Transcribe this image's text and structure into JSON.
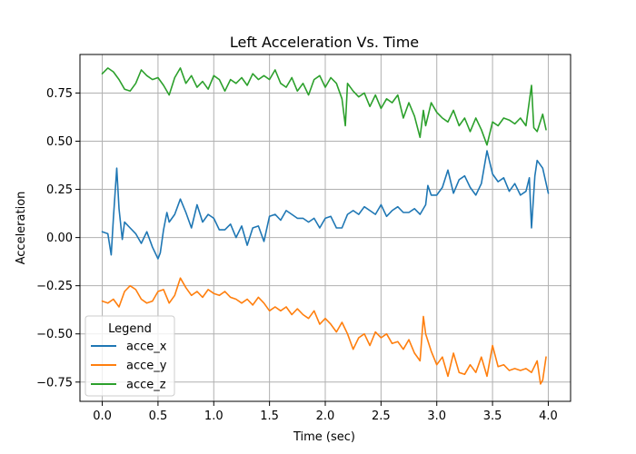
{
  "chart_data": {
    "type": "line",
    "title": "Left Acceleration Vs. Time",
    "xlabel": "Time (sec)",
    "ylabel": "Acceleration",
    "xlim": [
      -0.2,
      4.2
    ],
    "ylim": [
      -0.85,
      0.95
    ],
    "grid": true,
    "legend": {
      "title": "Legend",
      "placement": "lower-left"
    },
    "x_ticks": [
      {
        "value": 0.0,
        "label": "0.0"
      },
      {
        "value": 0.5,
        "label": "0.5"
      },
      {
        "value": 1.0,
        "label": "1.0"
      },
      {
        "value": 1.5,
        "label": "1.5"
      },
      {
        "value": 2.0,
        "label": "2.0"
      },
      {
        "value": 2.5,
        "label": "2.5"
      },
      {
        "value": 3.0,
        "label": "3.0"
      },
      {
        "value": 3.5,
        "label": "3.5"
      },
      {
        "value": 4.0,
        "label": "4.0"
      }
    ],
    "y_ticks": [
      {
        "value": 0.75,
        "label": "0.75"
      },
      {
        "value": 0.5,
        "label": "0.50"
      },
      {
        "value": 0.25,
        "label": "0.25"
      },
      {
        "value": 0.0,
        "label": "0.00"
      },
      {
        "value": -0.25,
        "label": "−0.25"
      },
      {
        "value": -0.5,
        "label": "−0.50"
      },
      {
        "value": -0.75,
        "label": "−0.75"
      }
    ],
    "series": [
      {
        "name": "acce_x",
        "color": "#1f77b4",
        "x": [
          0.0,
          0.05,
          0.08,
          0.1,
          0.13,
          0.15,
          0.18,
          0.2,
          0.25,
          0.3,
          0.35,
          0.4,
          0.45,
          0.5,
          0.52,
          0.55,
          0.58,
          0.6,
          0.65,
          0.7,
          0.75,
          0.8,
          0.85,
          0.9,
          0.95,
          1.0,
          1.05,
          1.1,
          1.15,
          1.2,
          1.25,
          1.3,
          1.35,
          1.4,
          1.45,
          1.5,
          1.55,
          1.6,
          1.65,
          1.7,
          1.75,
          1.8,
          1.85,
          1.9,
          1.95,
          2.0,
          2.05,
          2.1,
          2.15,
          2.2,
          2.25,
          2.3,
          2.35,
          2.4,
          2.45,
          2.5,
          2.55,
          2.6,
          2.65,
          2.7,
          2.75,
          2.8,
          2.85,
          2.9,
          2.92,
          2.95,
          3.0,
          3.05,
          3.1,
          3.15,
          3.2,
          3.25,
          3.3,
          3.35,
          3.4,
          3.45,
          3.5,
          3.55,
          3.6,
          3.65,
          3.7,
          3.75,
          3.8,
          3.83,
          3.85,
          3.88,
          3.9,
          3.95,
          4.0
        ],
        "y": [
          0.03,
          0.02,
          -0.09,
          0.1,
          0.36,
          0.15,
          -0.01,
          0.08,
          0.05,
          0.02,
          -0.03,
          0.03,
          -0.05,
          -0.11,
          -0.08,
          0.04,
          0.13,
          0.08,
          0.12,
          0.2,
          0.13,
          0.05,
          0.17,
          0.08,
          0.12,
          0.1,
          0.04,
          0.04,
          0.07,
          0.0,
          0.06,
          -0.04,
          0.05,
          0.06,
          -0.02,
          0.11,
          0.12,
          0.09,
          0.14,
          0.12,
          0.1,
          0.1,
          0.08,
          0.1,
          0.05,
          0.1,
          0.11,
          0.05,
          0.05,
          0.12,
          0.14,
          0.12,
          0.16,
          0.14,
          0.12,
          0.17,
          0.11,
          0.14,
          0.16,
          0.13,
          0.13,
          0.15,
          0.12,
          0.17,
          0.27,
          0.22,
          0.22,
          0.26,
          0.35,
          0.23,
          0.3,
          0.32,
          0.26,
          0.22,
          0.28,
          0.45,
          0.33,
          0.29,
          0.31,
          0.24,
          0.28,
          0.22,
          0.24,
          0.31,
          0.05,
          0.32,
          0.4,
          0.36,
          0.23
        ]
      },
      {
        "name": "acce_y",
        "color": "#ff7f0e",
        "x": [
          0.0,
          0.05,
          0.1,
          0.15,
          0.2,
          0.25,
          0.3,
          0.35,
          0.4,
          0.45,
          0.5,
          0.55,
          0.6,
          0.65,
          0.7,
          0.75,
          0.8,
          0.85,
          0.9,
          0.95,
          1.0,
          1.05,
          1.1,
          1.15,
          1.2,
          1.25,
          1.3,
          1.35,
          1.4,
          1.45,
          1.5,
          1.55,
          1.6,
          1.65,
          1.7,
          1.75,
          1.8,
          1.85,
          1.9,
          1.95,
          2.0,
          2.05,
          2.1,
          2.15,
          2.2,
          2.25,
          2.3,
          2.35,
          2.4,
          2.45,
          2.5,
          2.55,
          2.6,
          2.65,
          2.7,
          2.75,
          2.8,
          2.85,
          2.88,
          2.9,
          2.95,
          3.0,
          3.05,
          3.1,
          3.15,
          3.2,
          3.25,
          3.3,
          3.35,
          3.4,
          3.45,
          3.5,
          3.55,
          3.6,
          3.65,
          3.7,
          3.75,
          3.8,
          3.85,
          3.9,
          3.93,
          3.95,
          3.98
        ],
        "y": [
          -0.33,
          -0.34,
          -0.32,
          -0.36,
          -0.28,
          -0.25,
          -0.27,
          -0.32,
          -0.34,
          -0.33,
          -0.28,
          -0.27,
          -0.34,
          -0.3,
          -0.21,
          -0.26,
          -0.3,
          -0.28,
          -0.31,
          -0.27,
          -0.29,
          -0.3,
          -0.28,
          -0.31,
          -0.32,
          -0.34,
          -0.32,
          -0.35,
          -0.31,
          -0.34,
          -0.38,
          -0.36,
          -0.38,
          -0.36,
          -0.4,
          -0.37,
          -0.4,
          -0.42,
          -0.38,
          -0.45,
          -0.42,
          -0.45,
          -0.49,
          -0.44,
          -0.5,
          -0.58,
          -0.52,
          -0.5,
          -0.56,
          -0.49,
          -0.52,
          -0.5,
          -0.55,
          -0.54,
          -0.58,
          -0.53,
          -0.6,
          -0.64,
          -0.41,
          -0.5,
          -0.59,
          -0.66,
          -0.62,
          -0.72,
          -0.6,
          -0.7,
          -0.71,
          -0.66,
          -0.7,
          -0.62,
          -0.72,
          -0.56,
          -0.67,
          -0.66,
          -0.69,
          -0.68,
          -0.69,
          -0.68,
          -0.7,
          -0.64,
          -0.76,
          -0.74,
          -0.62
        ]
      },
      {
        "name": "acce_z",
        "color": "#2ca02c",
        "x": [
          0.0,
          0.05,
          0.1,
          0.15,
          0.2,
          0.25,
          0.3,
          0.35,
          0.4,
          0.45,
          0.5,
          0.55,
          0.6,
          0.65,
          0.7,
          0.75,
          0.8,
          0.85,
          0.9,
          0.95,
          1.0,
          1.05,
          1.1,
          1.15,
          1.2,
          1.25,
          1.3,
          1.35,
          1.4,
          1.45,
          1.5,
          1.55,
          1.6,
          1.65,
          1.7,
          1.75,
          1.8,
          1.85,
          1.9,
          1.95,
          2.0,
          2.05,
          2.1,
          2.15,
          2.18,
          2.2,
          2.25,
          2.3,
          2.35,
          2.4,
          2.45,
          2.5,
          2.55,
          2.6,
          2.65,
          2.7,
          2.75,
          2.8,
          2.85,
          2.88,
          2.9,
          2.95,
          3.0,
          3.05,
          3.1,
          3.15,
          3.2,
          3.25,
          3.3,
          3.35,
          3.4,
          3.45,
          3.5,
          3.55,
          3.6,
          3.65,
          3.7,
          3.75,
          3.8,
          3.85,
          3.87,
          3.9,
          3.95,
          3.98
        ],
        "y": [
          0.85,
          0.88,
          0.86,
          0.82,
          0.77,
          0.76,
          0.8,
          0.87,
          0.84,
          0.82,
          0.83,
          0.79,
          0.74,
          0.83,
          0.88,
          0.8,
          0.84,
          0.78,
          0.81,
          0.77,
          0.84,
          0.82,
          0.76,
          0.82,
          0.8,
          0.83,
          0.79,
          0.85,
          0.82,
          0.84,
          0.82,
          0.87,
          0.8,
          0.78,
          0.83,
          0.76,
          0.8,
          0.74,
          0.82,
          0.84,
          0.78,
          0.83,
          0.8,
          0.72,
          0.58,
          0.8,
          0.76,
          0.73,
          0.75,
          0.68,
          0.74,
          0.67,
          0.72,
          0.7,
          0.74,
          0.62,
          0.7,
          0.63,
          0.52,
          0.66,
          0.58,
          0.7,
          0.65,
          0.62,
          0.6,
          0.66,
          0.58,
          0.62,
          0.55,
          0.62,
          0.56,
          0.48,
          0.6,
          0.58,
          0.62,
          0.61,
          0.59,
          0.62,
          0.58,
          0.79,
          0.57,
          0.55,
          0.64,
          0.56
        ]
      }
    ]
  }
}
